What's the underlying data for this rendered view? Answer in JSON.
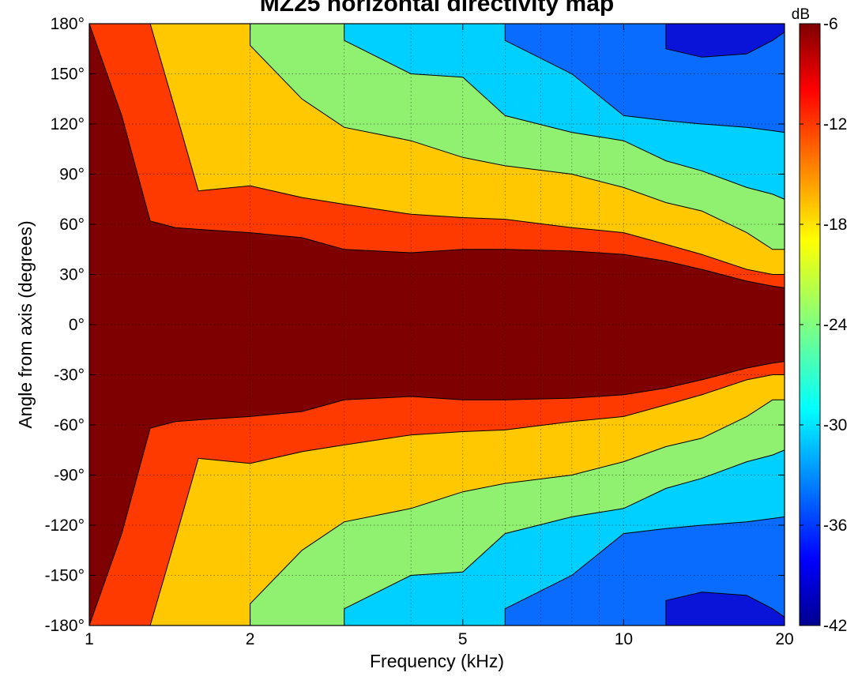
{
  "chart_data": {
    "type": "heatmap",
    "title": "MZ25 horizontal directivity map",
    "xlabel": "Frequency (kHz)",
    "ylabel": "Angle from axis (degrees)",
    "x_scale": "log",
    "xlim": [
      1,
      20
    ],
    "ylim": [
      -180,
      180
    ],
    "x_ticks": [
      1,
      2,
      5,
      10,
      20
    ],
    "x_tick_labels": [
      "1",
      "2",
      "5",
      "10",
      "20"
    ],
    "y_ticks": [
      180,
      150,
      120,
      90,
      60,
      30,
      0,
      -30,
      -60,
      -90,
      -120,
      -150,
      -180
    ],
    "y_tick_labels": [
      "180°",
      "150°",
      "120°",
      "90°",
      "60°",
      "30°",
      "0°",
      "-30°",
      "-60°",
      "-90°",
      "-120°",
      "-150°",
      "-180°"
    ],
    "grid": true,
    "colorbar": {
      "unit": "dB",
      "range": [
        -42,
        -6
      ],
      "ticks": [
        -6,
        -12,
        -18,
        -24,
        -30,
        -36,
        -42
      ],
      "tick_labels": [
        "-6",
        "-12",
        "-18",
        "-24",
        "-30",
        "-36",
        "-42"
      ],
      "colormap": "jet"
    },
    "contour_levels_db": [
      -6,
      -12,
      -18,
      -24,
      -30,
      -36
    ],
    "level_colors": {
      "above_-6": "#7f0000",
      "-12_to_-6": "#ff3a00",
      "-18_to_-12": "#ffc800",
      "-24_to_-18": "#90f070",
      "-30_to_-24": "#00d0ff",
      "-36_to_-30": "#0a6cff",
      "-42_to_-36": "#0a14d8",
      "below_-42": "#00008f"
    },
    "contour_boundaries": {
      "frequency_khz": [
        1.0,
        1.15,
        1.3,
        1.45,
        1.6,
        2.0,
        2.5,
        3.0,
        4.0,
        5.0,
        6.0,
        8.0,
        10.0,
        12.0,
        14.0,
        17.0,
        19.0,
        20.0
      ],
      "minus_6_db_angle_deg": [
        180,
        125,
        62,
        58,
        57,
        55,
        52,
        45,
        43,
        45,
        45,
        44,
        42,
        38,
        33,
        26,
        23,
        22
      ],
      "minus_12_db_angle_deg": [
        180,
        180,
        180,
        128,
        80,
        83,
        76,
        72,
        66,
        64,
        63,
        58,
        55,
        48,
        42,
        33,
        30,
        30
      ],
      "minus_18_db_angle_deg": [
        null,
        null,
        null,
        null,
        null,
        167,
        135,
        118,
        110,
        100,
        95,
        90,
        82,
        73,
        68,
        55,
        45,
        45
      ],
      "minus_24_db_angle_deg": [
        null,
        null,
        null,
        null,
        null,
        null,
        null,
        170,
        150,
        148,
        125,
        115,
        110,
        98,
        92,
        82,
        78,
        75
      ],
      "minus_30_db_angle_deg": [
        null,
        null,
        null,
        null,
        null,
        null,
        null,
        null,
        null,
        null,
        170,
        150,
        125,
        122,
        120,
        118,
        116,
        115
      ],
      "minus_36_db_angle_deg": [
        null,
        null,
        null,
        null,
        null,
        null,
        null,
        null,
        null,
        null,
        null,
        null,
        null,
        165,
        160,
        162,
        170,
        175
      ]
    }
  }
}
